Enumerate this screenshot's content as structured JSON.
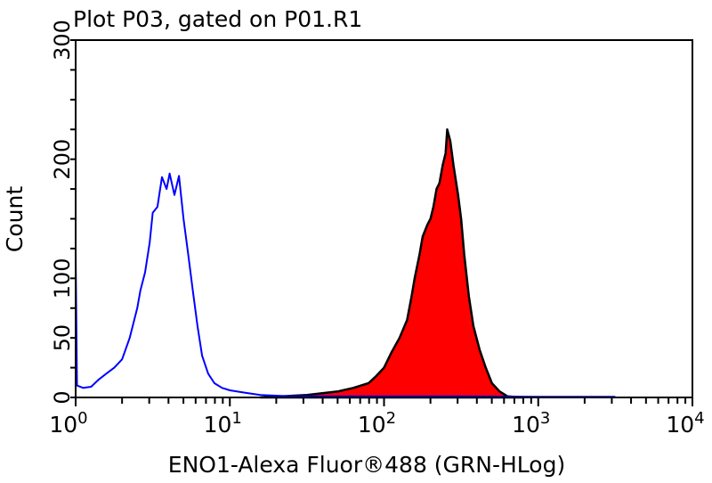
{
  "chart_data": {
    "type": "area",
    "title": "Plot P03, gated on P01.R1",
    "xlabel": "ENO1-Alexa Fluor®488 (GRN-HLog)",
    "ylabel": "Count",
    "x_scale": "log",
    "xlim": [
      1,
      10000
    ],
    "ylim": [
      0,
      300
    ],
    "x_ticks": [
      {
        "base": "10",
        "exp": "0",
        "value": 1
      },
      {
        "base": "10",
        "exp": "1",
        "value": 10
      },
      {
        "base": "10",
        "exp": "2",
        "value": 100
      },
      {
        "base": "10",
        "exp": "3",
        "value": 1000
      },
      {
        "base": "10",
        "exp": "4",
        "value": 10000
      }
    ],
    "y_ticks": [
      "0",
      "50",
      "100",
      "200",
      "300"
    ],
    "grid": false,
    "series": [
      {
        "style": "outline",
        "color": "#0000ff",
        "x": [
          1,
          1.02,
          1.12,
          1.26,
          1.41,
          1.58,
          1.78,
          2.0,
          2.24,
          2.51,
          2.63,
          2.82,
          3.02,
          3.16,
          3.39,
          3.63,
          3.89,
          4.07,
          4.37,
          4.68,
          5.01,
          5.37,
          5.75,
          6.17,
          6.61,
          7.24,
          7.94,
          8.91,
          10,
          12.6,
          15.8,
          25.1,
          39.8,
          100,
          316,
          1000,
          3162
        ],
        "y": [
          120,
          10,
          8,
          9,
          15,
          20,
          25,
          32,
          50,
          75,
          90,
          105,
          130,
          155,
          160,
          185,
          175,
          188,
          170,
          186,
          150,
          120,
          90,
          60,
          35,
          20,
          12,
          8,
          6,
          4,
          2,
          1,
          1,
          1,
          1,
          0.5,
          0.5
        ]
      },
      {
        "style": "filled",
        "color": "#ff0000",
        "outline": "#000000",
        "x": [
          15.8,
          31.6,
          50.1,
          63.1,
          79.4,
          89.1,
          100,
          112,
          126,
          141,
          151,
          158,
          170,
          178,
          191,
          200,
          209,
          219,
          229,
          240,
          251,
          257,
          269,
          282,
          302,
          316,
          331,
          355,
          380,
          417,
          457,
          501,
          562,
          631,
          794
        ],
        "y": [
          0,
          2,
          5,
          8,
          12,
          18,
          25,
          38,
          50,
          65,
          85,
          100,
          120,
          135,
          145,
          150,
          160,
          175,
          180,
          195,
          205,
          225,
          215,
          195,
          170,
          150,
          120,
          85,
          60,
          40,
          25,
          12,
          5,
          1,
          0
        ]
      }
    ]
  }
}
